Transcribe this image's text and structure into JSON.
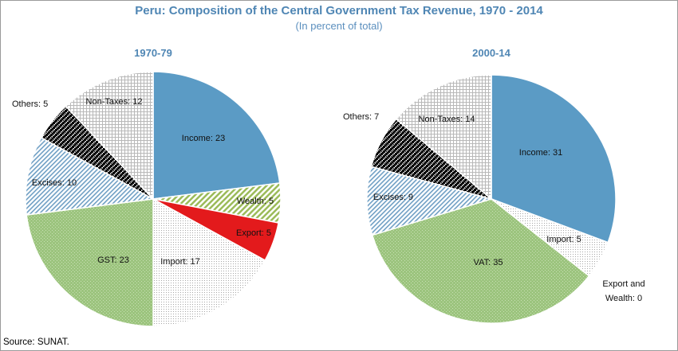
{
  "title": "Peru: Composition of the Central Government Tax Revenue, 1970 - 2014",
  "subtitle": "(In percent of total)",
  "source": "Source: SUNAT.",
  "colors": {
    "income": "#5b9bc5",
    "wealth": "#9bbb59",
    "export": "#e31a1c",
    "import": "#bfbfbf",
    "gst_vat": "#9cc47e",
    "excises": "#6f9fc4",
    "others": "#000000",
    "non_taxes": "#bfbfbf",
    "title": "#4f86b4"
  },
  "chart_data": [
    {
      "type": "pie",
      "title": "1970-79",
      "series": [
        {
          "name": "Income",
          "value": 23,
          "label": "Income: 23"
        },
        {
          "name": "Wealth",
          "value": 5,
          "label": "Wealth: 5"
        },
        {
          "name": "Export",
          "value": 5,
          "label": "Export: 5"
        },
        {
          "name": "Import",
          "value": 17,
          "label": "Import: 17"
        },
        {
          "name": "GST",
          "value": 23,
          "label": "GST: 23"
        },
        {
          "name": "Excises",
          "value": 10,
          "label": "Excises: 10"
        },
        {
          "name": "Others",
          "value": 5,
          "label": "Others: 5"
        },
        {
          "name": "Non-Taxes",
          "value": 12,
          "label": "Non-Taxes: 12"
        }
      ]
    },
    {
      "type": "pie",
      "title": "2000-14",
      "series": [
        {
          "name": "Income",
          "value": 31,
          "label": "Income: 31"
        },
        {
          "name": "Export and Wealth",
          "value": 0,
          "label": "Export and Wealth: 0"
        },
        {
          "name": "Import",
          "value": 5,
          "label": "Import: 5"
        },
        {
          "name": "VAT",
          "value": 35,
          "label": "VAT: 35"
        },
        {
          "name": "Excises",
          "value": 9,
          "label": "Excises: 9"
        },
        {
          "name": "Others",
          "value": 7,
          "label": "Others: 7"
        },
        {
          "name": "Non-Taxes",
          "value": 14,
          "label": "Non-Taxes: 14"
        }
      ]
    }
  ]
}
